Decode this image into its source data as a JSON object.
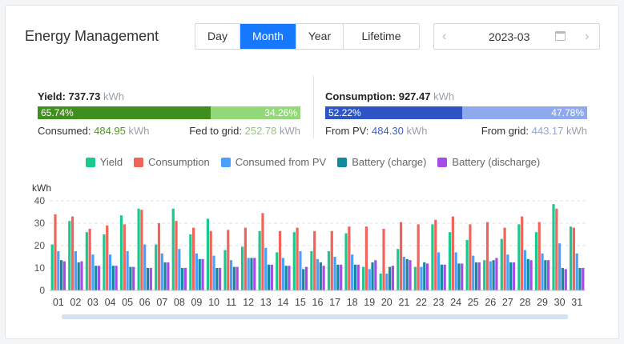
{
  "title": "Energy Management",
  "tabs": [
    {
      "label": "Day",
      "active": false
    },
    {
      "label": "Month",
      "active": true
    },
    {
      "label": "Year",
      "active": false
    },
    {
      "label": "Lifetime",
      "active": false
    }
  ],
  "date": {
    "value": "2023-03",
    "prev_icon": "chevron-left-icon",
    "next_icon": "chevron-right-icon",
    "calendar_icon": "calendar-icon"
  },
  "yield": {
    "label": "Yield:",
    "value": "737.73",
    "unit": "kWh",
    "consumed_pct": "65.74%",
    "fed_pct": "34.26%",
    "consumed_label": "Consumed:",
    "consumed_value": "484.95",
    "consumed_unit": "kWh",
    "fed_label": "Fed to grid:",
    "fed_value": "252.78",
    "fed_unit": "kWh",
    "consumed_fraction": 0.6574
  },
  "consumption": {
    "label": "Consumption:",
    "value": "927.47",
    "unit": "kWh",
    "pv_pct": "52.22%",
    "grid_pct": "47.78%",
    "pv_label": "From PV:",
    "pv_value": "484.30",
    "pv_unit": "kWh",
    "grid_label": "From grid:",
    "grid_value": "443.17",
    "grid_unit": "kWh",
    "pv_fraction": 0.5222
  },
  "colors": {
    "yield_dark": "#3f8f1c",
    "yield_light": "#93d879",
    "cons_dark": "#2d55c6",
    "cons_light": "#8fa9ef",
    "yield": "#1bc98e",
    "consumption": "#f0645a",
    "consumed_from_pv": "#4aa0ff",
    "battery_charge": "#13899f",
    "battery_discharge": "#a64ce6"
  },
  "legend": [
    {
      "label": "Yield",
      "color": "#1bc98e"
    },
    {
      "label": "Consumption",
      "color": "#f0645a"
    },
    {
      "label": "Consumed from PV",
      "color": "#4aa0ff"
    },
    {
      "label": "Battery (charge)",
      "color": "#13899f"
    },
    {
      "label": "Battery (discharge)",
      "color": "#a64ce6"
    }
  ],
  "chart_data": {
    "type": "bar",
    "ylabel": "kWh",
    "ylim": [
      0,
      40
    ],
    "yticks": [
      0,
      10,
      20,
      30,
      40
    ],
    "grid": true,
    "legend_position": "top",
    "categories": [
      "01",
      "02",
      "03",
      "04",
      "05",
      "06",
      "07",
      "08",
      "09",
      "10",
      "11",
      "12",
      "13",
      "14",
      "15",
      "16",
      "17",
      "18",
      "19",
      "20",
      "21",
      "22",
      "23",
      "24",
      "25",
      "26",
      "27",
      "28",
      "29",
      "30",
      "31"
    ],
    "series": [
      {
        "name": "Yield",
        "values": [
          20.5,
          31,
          26,
          25,
          33.5,
          36.5,
          20.5,
          36.5,
          25,
          32,
          18,
          19.5,
          26.5,
          17,
          26,
          17.5,
          17.5,
          25.5,
          10.5,
          7.5,
          18.5,
          10.5,
          29.5,
          26,
          22.5,
          13.5,
          23,
          29.5,
          26,
          38.5,
          28.5
        ]
      },
      {
        "name": "Consumption",
        "values": [
          34,
          33,
          27.5,
          29,
          29.5,
          36,
          30,
          31,
          28,
          26.5,
          27,
          28,
          34.5,
          26.5,
          28,
          26.5,
          26.5,
          28.5,
          28.5,
          27.5,
          30.5,
          29.5,
          31.5,
          33,
          29.5,
          30.5,
          28,
          33,
          30.5,
          36.5,
          28
        ]
      },
      {
        "name": "Consumed from PV",
        "values": [
          17.5,
          17.5,
          16,
          16,
          17.5,
          20.5,
          16.5,
          18.5,
          16.5,
          15.5,
          13.5,
          14.5,
          19,
          14.5,
          17.5,
          14,
          15,
          16,
          9.5,
          7.5,
          15,
          10.5,
          17,
          17,
          15.5,
          13,
          16,
          18,
          16.5,
          21,
          16.5
        ]
      },
      {
        "name": "Battery (charge)",
        "values": [
          13.5,
          12.5,
          11,
          11,
          10.5,
          10,
          12.5,
          10,
          14,
          10,
          10.5,
          14.5,
          11.5,
          11,
          9.5,
          12.5,
          11.5,
          11.5,
          12.5,
          10.5,
          14,
          12.5,
          11.5,
          12,
          12.5,
          13.5,
          12.5,
          14,
          13.5,
          10,
          10
        ]
      },
      {
        "name": "Battery (discharge)",
        "values": [
          13,
          13,
          11,
          11,
          10.5,
          10,
          12.5,
          10,
          14,
          10,
          10.5,
          14.5,
          11.5,
          11,
          10.5,
          11,
          11.5,
          11.5,
          13.5,
          11,
          13.5,
          12,
          11.5,
          12,
          12.5,
          14.5,
          12.5,
          13.5,
          13.5,
          9.5,
          10
        ]
      }
    ]
  }
}
